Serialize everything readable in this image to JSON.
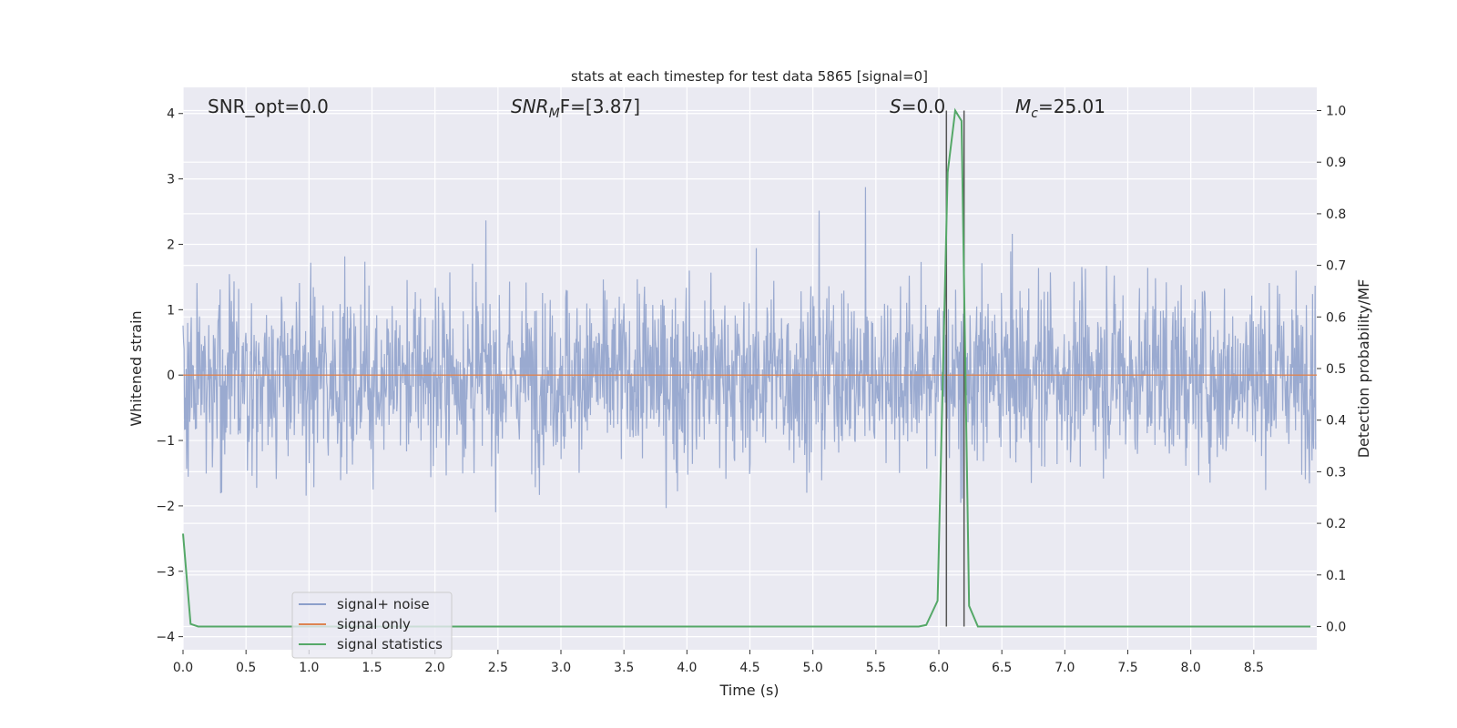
{
  "chart_data": {
    "type": "line",
    "title": "stats at each timestep for test data 5865 [signal=0]",
    "xlabel": "Time (s)",
    "ylabel_left": "Whitened strain",
    "ylabel_right": "Detection probability/MF",
    "xlim": [
      0.0,
      9.0
    ],
    "ylim_left": [
      -4.2,
      4.4
    ],
    "ylim_right": [
      -0.045,
      1.045
    ],
    "x_ticks": [
      "0.0",
      "0.5",
      "1.0",
      "1.5",
      "2.0",
      "2.5",
      "3.0",
      "3.5",
      "4.0",
      "4.5",
      "5.0",
      "5.5",
      "6.0",
      "6.5",
      "7.0",
      "7.5",
      "8.0",
      "8.5"
    ],
    "y_ticks_left": [
      "4",
      "3",
      "2",
      "1",
      "0",
      "−1",
      "−2",
      "−3",
      "−4"
    ],
    "y_ticks_right": [
      "1.0",
      "0.9",
      "0.8",
      "0.7",
      "0.6",
      "0.5",
      "0.4",
      "0.3",
      "0.2",
      "0.1",
      "0.0"
    ],
    "grid": true,
    "annotations": {
      "snr_opt": "SNR_opt=0.0",
      "snr_mf_label": "SNR",
      "snr_mf_sub": "M",
      "snr_mf_tail": "F=[3.87]",
      "s_label": "S",
      "s_value": "=0.0",
      "mc_label": "M",
      "mc_sub": "c",
      "mc_value": "=25.01"
    },
    "legend_position": "bottom-left",
    "series": [
      {
        "name": "signal+ noise",
        "color": "#8c9fca",
        "description_of_values": "noise strain, roughly within [-3.4, 4.0]"
      },
      {
        "name": "signal only",
        "color": "#dd8452",
        "x": [
          0.0,
          9.0
        ],
        "y": [
          0.0,
          0.0
        ]
      },
      {
        "name": "signal statistics",
        "color": "#55a868",
        "axis": "right",
        "x": [
          0.0,
          0.06,
          0.12,
          5.84,
          5.9,
          5.99,
          6.07,
          6.13,
          6.18,
          6.24,
          6.31,
          8.95
        ],
        "y": [
          0.18,
          0.005,
          0.0,
          0.0,
          0.003,
          0.05,
          0.88,
          1.0,
          0.98,
          0.04,
          0.0,
          0.0
        ]
      }
    ],
    "vertical_lines_x": [
      6.06,
      6.2
    ],
    "vline_color": "#555555"
  }
}
